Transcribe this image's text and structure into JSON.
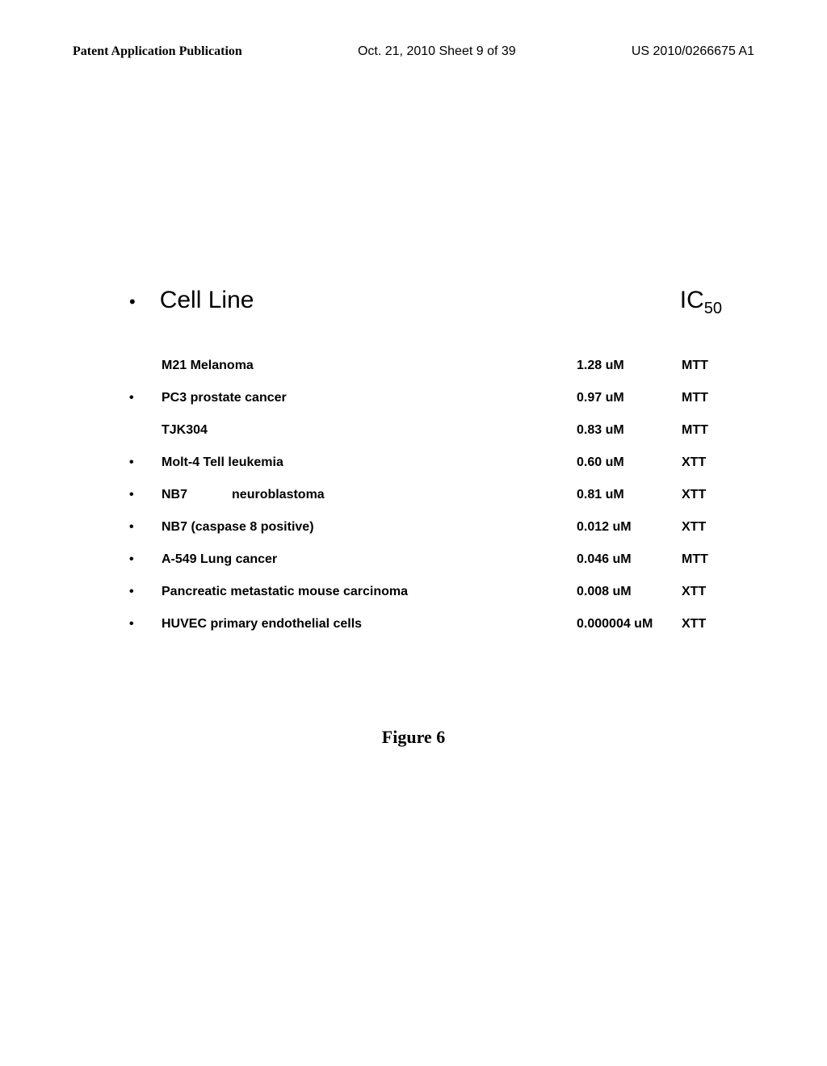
{
  "header": {
    "left": "Patent Application Publication",
    "center": "Oct. 21, 2010  Sheet 9 of 39",
    "right": "US 2010/0266675 A1"
  },
  "title": {
    "cell_line": "Cell Line",
    "ic50_label": "IC",
    "ic50_sub": "50"
  },
  "rows": [
    {
      "bullet": "",
      "name": "M21 Melanoma",
      "ic50": "1.28 uM",
      "assay": "MTT"
    },
    {
      "bullet": "•",
      "name": "PC3  prostate cancer",
      "ic50": "0.97 uM",
      "assay": "MTT"
    },
    {
      "bullet": "",
      "name": "TJK304",
      "ic50": "0.83 uM",
      "assay": "MTT"
    },
    {
      "bullet": "•",
      "name": "Molt-4 Tell leukemia",
      "ic50": "0.60 uM",
      "assay": "XTT"
    },
    {
      "bullet": "•",
      "name_html": true,
      "name_part1": "NB7",
      "name_part2": "neuroblastoma",
      "ic50": "0.81 uM",
      "assay": "XTT"
    },
    {
      "bullet": "•",
      "name": "NB7 (caspase 8 positive)",
      "ic50": "0.012 uM",
      "assay": "XTT"
    },
    {
      "bullet": "•",
      "name": "A-549 Lung cancer",
      "ic50": "0.046 uM",
      "assay": "MTT"
    },
    {
      "bullet": "•",
      "name": "Pancreatic metastatic mouse carcinoma",
      "ic50": "0.008 uM",
      "assay": "XTT"
    },
    {
      "bullet": "•",
      "name": "HUVEC primary endothelial cells",
      "ic50": "0.000004 uM",
      "assay": "XTT"
    }
  ],
  "figure_label": "Figure 6"
}
